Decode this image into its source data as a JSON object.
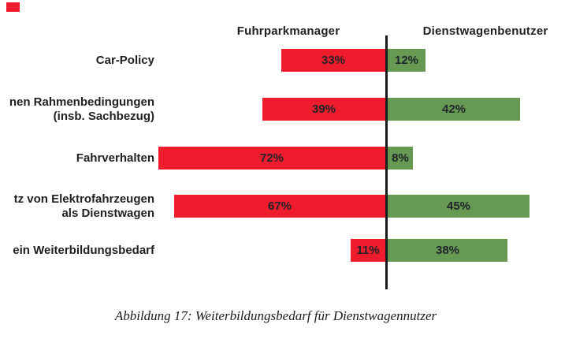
{
  "chart_data": {
    "type": "bar",
    "subtype": "diverging-horizontal",
    "left_header": "Fuhrparkmanager",
    "right_header": "Dienstwagenbenutzer",
    "unit": "%",
    "categories": [
      {
        "label_lines": [
          "Car-Policy"
        ]
      },
      {
        "label_lines": [
          "nen Rahmenbedingungen",
          "(insb. Sachbezug)"
        ]
      },
      {
        "label_lines": [
          "Fahrverhalten"
        ]
      },
      {
        "label_lines": [
          "tz von Elektrofahrzeugen",
          "als Dienstwagen"
        ]
      },
      {
        "label_lines": [
          "ein Weiterbildungsbedarf"
        ]
      }
    ],
    "series": [
      {
        "name": "Fuhrparkmanager",
        "side": "left",
        "color": "#ee1c2c",
        "values": [
          33,
          39,
          72,
          67,
          11
        ],
        "value_labels": [
          "33%",
          "39%",
          "72%",
          "67%",
          "11%"
        ]
      },
      {
        "name": "Dienstwagenbenutzer",
        "side": "right",
        "color": "#669a52",
        "values": [
          12,
          42,
          8,
          45,
          38
        ],
        "value_labels": [
          "12%",
          "42%",
          "8%",
          "45%",
          "38%"
        ]
      }
    ],
    "axis": {
      "style": "center-divider",
      "color": "#1a1a1a"
    },
    "legend_position": "top-headers",
    "grid": false
  },
  "caption": "Abbildung 17: Weiterbildungsbedarf für Dienstwagennutzer",
  "colors": {
    "left_bar": "#ee1c2c",
    "right_bar": "#669a52",
    "axis": "#1a1a1a",
    "text": "#231f20",
    "corner_mark": "#ee1c2c"
  }
}
